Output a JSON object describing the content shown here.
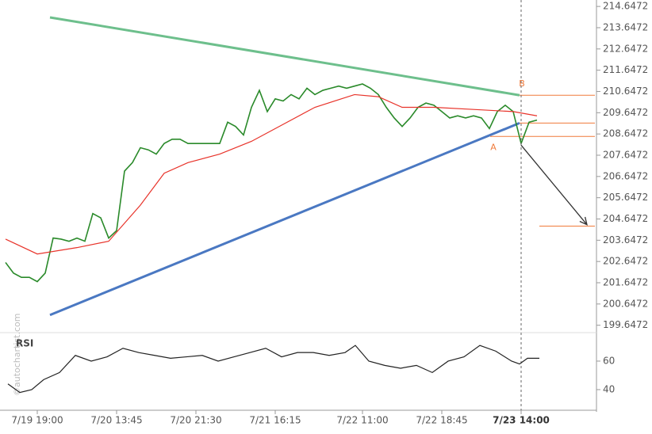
{
  "chart_data": [
    {
      "type": "line",
      "xlim": [
        -0.7,
        74.5
      ],
      "ylim": [
        199.3,
        214.95
      ],
      "yticks": [
        214.6472,
        213.6472,
        212.6472,
        211.6472,
        210.6472,
        209.6472,
        208.6472,
        207.6472,
        206.6472,
        205.6472,
        204.6472,
        203.6472,
        202.6472,
        201.6472,
        200.6472,
        199.6472
      ],
      "series": [
        {
          "color": "#2a8a2a",
          "x": [
            0,
            1,
            2,
            3,
            4,
            5,
            6,
            7,
            8,
            9,
            10,
            11,
            12,
            13,
            14,
            15,
            16,
            17,
            18,
            19,
            20,
            21,
            22,
            23,
            24,
            25,
            26,
            27,
            28,
            29,
            30,
            31,
            32,
            33,
            34,
            35,
            36,
            37,
            38,
            39,
            40,
            41,
            42,
            43,
            44,
            45,
            46,
            47,
            48,
            49,
            50,
            51,
            52,
            53,
            54,
            55,
            56,
            57,
            58,
            59,
            60,
            61,
            62,
            63,
            64,
            65,
            66,
            67
          ],
          "values": [
            202.6,
            202.1,
            201.9,
            201.9,
            201.7,
            202.1,
            203.75,
            203.7,
            203.6,
            203.75,
            203.6,
            204.9,
            204.7,
            203.75,
            204.1,
            206.9,
            207.3,
            208.0,
            207.9,
            207.7,
            208.2,
            208.4,
            208.4,
            208.2,
            208.2,
            208.2,
            208.2,
            208.2,
            209.2,
            209.0,
            208.6,
            209.9,
            210.7,
            209.7,
            210.3,
            210.2,
            210.5,
            210.3,
            210.8,
            210.5,
            210.7,
            210.8,
            210.9,
            210.8,
            210.9,
            211.0,
            210.8,
            210.5,
            209.9,
            209.4,
            209.0,
            209.4,
            209.9,
            210.1,
            210.0,
            209.7,
            209.4,
            209.5,
            209.4,
            209.5,
            209.4,
            208.9,
            209.7,
            210.0,
            209.7,
            208.2,
            209.2,
            209.3
          ]
        },
        {
          "color": "#e8332a",
          "x": [
            0,
            4,
            9,
            13,
            17,
            20,
            23,
            27,
            31,
            35,
            39,
            44,
            47,
            50,
            54,
            59,
            64,
            67
          ],
          "values": [
            203.7,
            203.0,
            203.3,
            203.6,
            205.3,
            206.8,
            207.3,
            207.7,
            208.3,
            209.1,
            209.9,
            210.5,
            210.4,
            209.9,
            209.9,
            209.8,
            209.7,
            209.5
          ]
        }
      ],
      "trendlines": [
        {
          "color": "#6dbf8c",
          "x": [
            5.6,
            64.8
          ],
          "values": [
            214.13,
            210.47
          ]
        },
        {
          "color": "#4a78c2",
          "x": [
            5.6,
            64.8
          ],
          "values": [
            200.13,
            209.16
          ]
        }
      ],
      "levels": [
        {
          "color": "#f07a3a",
          "x": [
            64.8,
            74.3
          ],
          "values": [
            210.47,
            210.47
          ]
        },
        {
          "color": "#f07a3a",
          "x": [
            61.1,
            74.3
          ],
          "values": [
            208.53,
            208.53
          ]
        },
        {
          "color": "#f07a3a",
          "x": [
            64.8,
            74.3
          ],
          "values": [
            209.16,
            209.16
          ]
        },
        {
          "color": "#f07a3a",
          "x": [
            67.3,
            74.3
          ],
          "values": [
            204.31,
            204.31
          ]
        }
      ],
      "arrow": {
        "color": "#333333",
        "x": [
          65,
          73.3
        ],
        "values": [
          208.12,
          204.38
        ]
      },
      "point_labels": [
        {
          "text": "B",
          "x": 65.1,
          "y": 211.0
        },
        {
          "text": "A",
          "x": 61.5,
          "y": 208.0
        }
      ],
      "watermark": "©autochartist.com"
    },
    {
      "type": "line",
      "label": "RSI",
      "xlim": [
        -0.7,
        74.5
      ],
      "ylim": [
        27.2,
        77.2
      ],
      "yticks": [
        60,
        40
      ],
      "xticks": [
        {
          "value": 4,
          "label": "7/19 19:00"
        },
        {
          "value": 14,
          "label": "7/20 13:45"
        },
        {
          "value": 24,
          "label": "7/20 21:30"
        },
        {
          "value": 34,
          "label": "7/21 16:15"
        },
        {
          "value": 45,
          "label": "7/22 11:00"
        },
        {
          "value": 55,
          "label": "7/22 18:45"
        },
        {
          "value": 65,
          "label": "7/23 14:00"
        }
      ],
      "series": [
        {
          "color": "#222222",
          "x": [
            0.3,
            1.8,
            3.3,
            4.8,
            6.8,
            8.8,
            10.8,
            12.8,
            14.8,
            16.8,
            18.8,
            20.8,
            22.8,
            24.8,
            26.8,
            28.8,
            30.8,
            32.8,
            34.8,
            36.8,
            38.8,
            40.8,
            42.8,
            44.1,
            45.8,
            47.8,
            49.8,
            51.8,
            53.8,
            55.8,
            57.8,
            59.8,
            61.8,
            63.8,
            64.8,
            65.8,
            67.3
          ],
          "values": [
            44,
            38,
            40,
            47,
            52,
            64,
            60,
            63,
            69,
            66,
            64,
            62,
            63,
            64,
            60,
            63,
            66,
            69,
            63,
            66,
            66,
            64,
            66,
            71,
            60,
            57,
            55,
            57,
            52,
            60,
            63,
            71,
            67,
            60,
            58,
            62,
            62
          ]
        }
      ]
    }
  ]
}
